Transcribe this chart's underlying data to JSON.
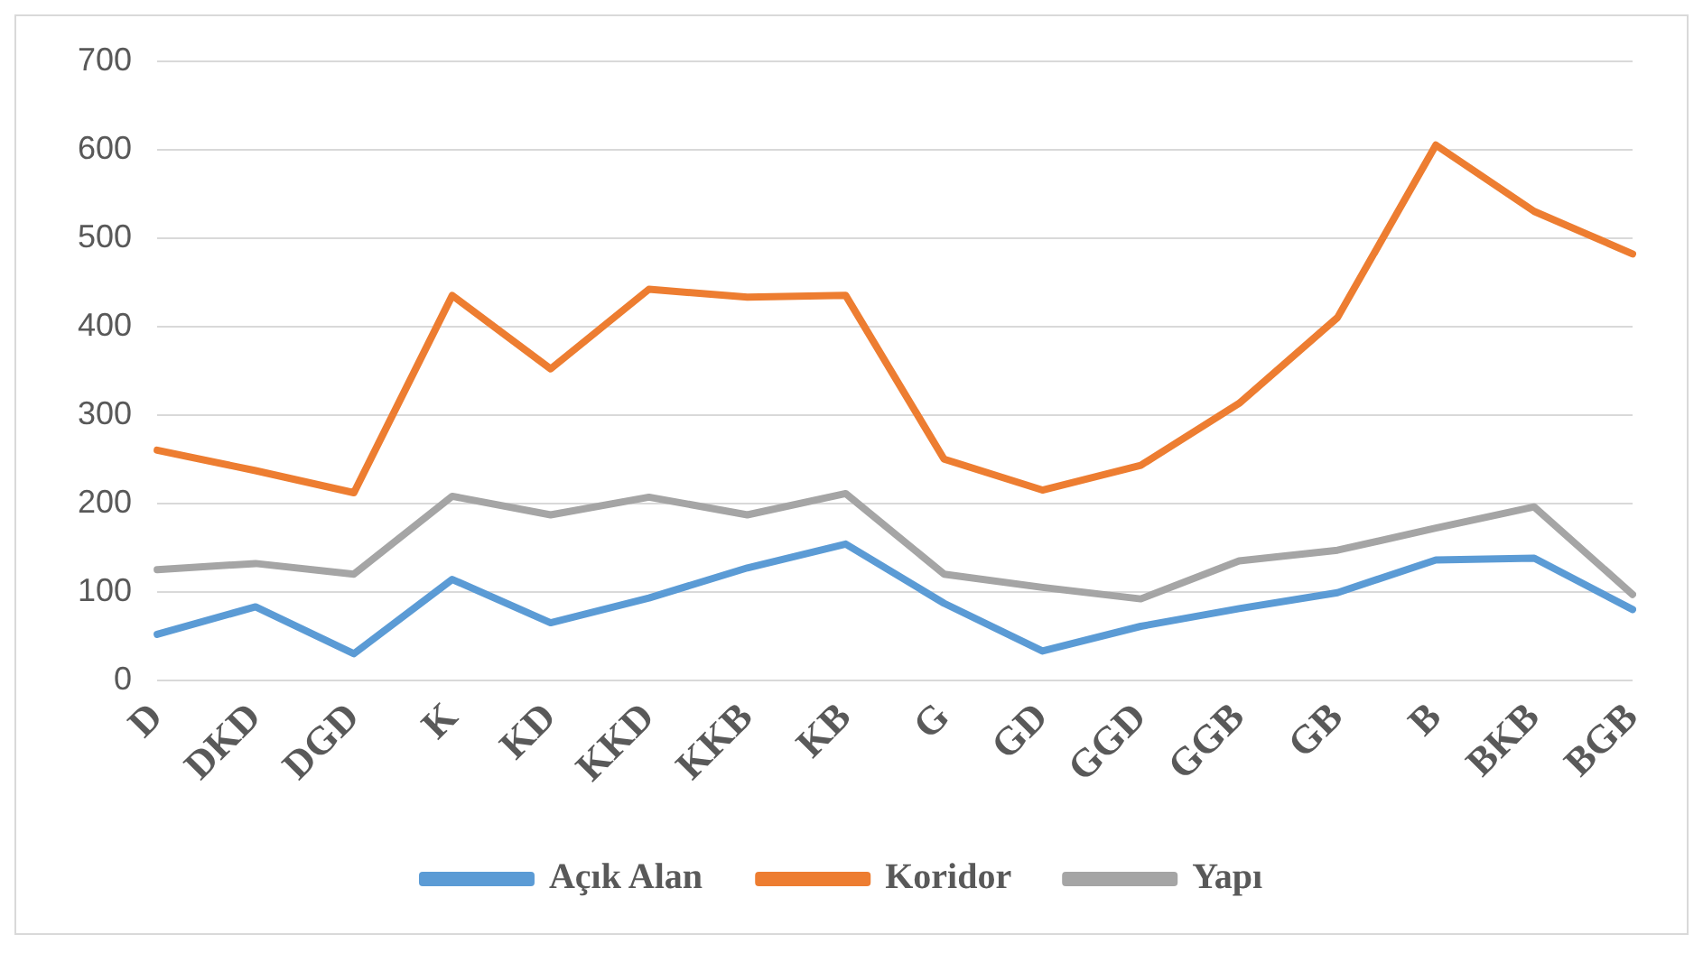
{
  "chart_data": {
    "type": "line",
    "categories": [
      "D",
      "DKD",
      "DGD",
      "K",
      "KD",
      "KKD",
      "KKB",
      "KB",
      "G",
      "GD",
      "GGD",
      "GGB",
      "GB",
      "B",
      "BKB",
      "BGB"
    ],
    "series": [
      {
        "name": "Açık Alan",
        "color": "#5b9bd5",
        "values": [
          52,
          83,
          30,
          114,
          65,
          93,
          127,
          154,
          87,
          33,
          61,
          81,
          99,
          136,
          138,
          80
        ]
      },
      {
        "name": "Koridor",
        "color": "#ed7d31",
        "values": [
          260,
          237,
          212,
          435,
          352,
          442,
          433,
          435,
          250,
          215,
          243,
          313,
          410,
          605,
          530,
          482
        ]
      },
      {
        "name": "Yapı",
        "color": "#a5a5a5",
        "values": [
          125,
          132,
          120,
          208,
          187,
          207,
          187,
          211,
          120,
          105,
          92,
          135,
          147,
          172,
          196,
          97
        ]
      }
    ],
    "ylim": [
      0,
      700
    ],
    "yticks": [
      0,
      100,
      200,
      300,
      400,
      500,
      600,
      700
    ],
    "grid": "y",
    "legend": "bottom",
    "marker": "none",
    "line_style": "solid"
  }
}
